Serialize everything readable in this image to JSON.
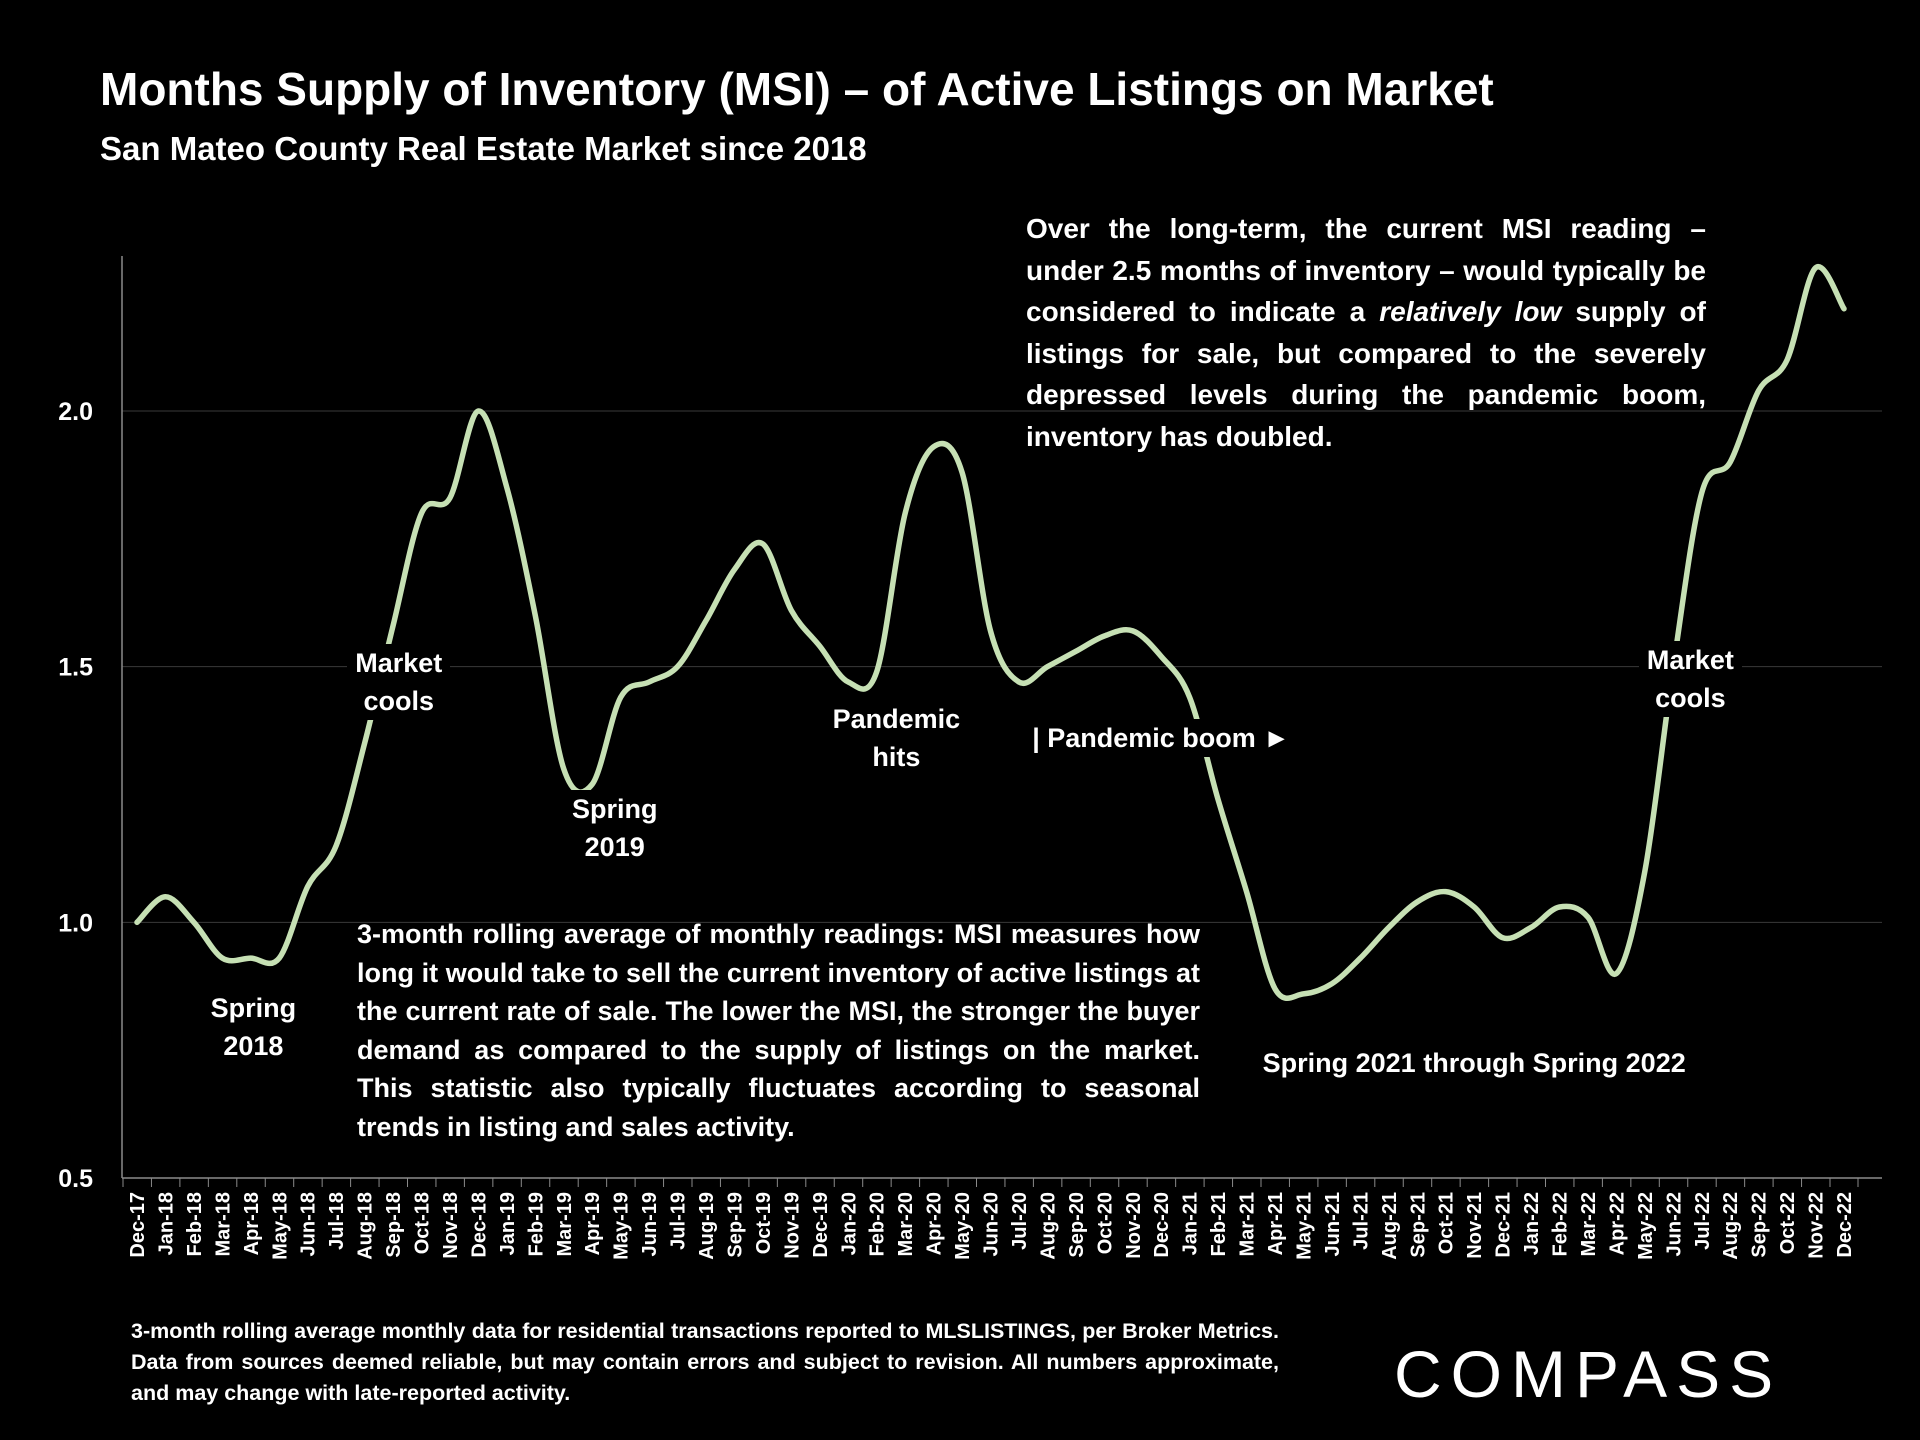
{
  "header": {
    "title": "Months Supply of Inventory (MSI) – of Active Listings on Market",
    "subtitle": "San Mateo County Real Estate Market since 2018"
  },
  "notes": {
    "top_before": "Over the long-term, the current MSI reading – under 2.5 months of inventory – would typically be considered to indicate a ",
    "top_emph": "relatively low",
    "top_after": " supply of listings for sale, but compared to the severely depressed levels during the pandemic boom, inventory has doubled.",
    "middle": "3-month rolling average of monthly readings: MSI measures how long it would take to sell the current inventory of active listings at the current rate of sale. The lower the MSI, the stronger the buyer demand as compared to the supply of listings on the market. This statistic also typically fluctuates according to seasonal trends in listing and sales activity.",
    "footnote": "3-month rolling average monthly data for residential transactions reported to MLSLISTINGS, per Broker Metrics. Data from sources deemed reliable, but may contain errors and subject to revision. All numbers approximate, and may change with late-reported activity."
  },
  "brand": {
    "logo_text": "COMPASS"
  },
  "colors": {
    "background": "#000000",
    "line": "#c6e0b4",
    "text": "#ffffff",
    "gridline": "#3a3a3a"
  },
  "chart_data": {
    "type": "line",
    "title": "Months Supply of Inventory (MSI) – of Active Listings on Market",
    "xlabel": "",
    "ylabel": "",
    "ylim": [
      0.5,
      2.3
    ],
    "yticks": [
      0.5,
      1.0,
      1.5,
      2.0
    ],
    "ytick_labels": [
      "0.5",
      "1.0",
      "1.5",
      "2.0"
    ],
    "grid": true,
    "categories": [
      "Dec-17",
      "Jan-18",
      "Feb-18",
      "Mar-18",
      "Apr-18",
      "May-18",
      "Jun-18",
      "Jul-18",
      "Aug-18",
      "Sep-18",
      "Oct-18",
      "Nov-18",
      "Dec-18",
      "Jan-19",
      "Feb-19",
      "Mar-19",
      "Apr-19",
      "May-19",
      "Jun-19",
      "Jul-19",
      "Aug-19",
      "Sep-19",
      "Oct-19",
      "Nov-19",
      "Dec-19",
      "Jan-20",
      "Feb-20",
      "Mar-20",
      "Apr-20",
      "May-20",
      "Jun-20",
      "Jul-20",
      "Aug-20",
      "Sep-20",
      "Oct-20",
      "Nov-20",
      "Dec-20",
      "Jan-21",
      "Feb-21",
      "Mar-21",
      "Apr-21",
      "May-21",
      "Jun-21",
      "Jul-21",
      "Aug-21",
      "Sep-21",
      "Oct-21",
      "Nov-21",
      "Dec-21",
      "Jan-22",
      "Feb-22",
      "Mar-22",
      "Apr-22",
      "May-22",
      "Jun-22",
      "Jul-22",
      "Aug-22",
      "Sep-22",
      "Oct-22",
      "Nov-22",
      "Dec-22"
    ],
    "series": [
      {
        "name": "MSI (3-month rolling average)",
        "values": [
          1.0,
          1.05,
          1.0,
          0.93,
          0.93,
          0.93,
          1.07,
          1.15,
          1.35,
          1.58,
          1.8,
          1.83,
          2.0,
          1.85,
          1.6,
          1.3,
          1.27,
          1.44,
          1.47,
          1.5,
          1.59,
          1.69,
          1.74,
          1.61,
          1.54,
          1.47,
          1.49,
          1.8,
          1.93,
          1.88,
          1.57,
          1.47,
          1.5,
          1.53,
          1.56,
          1.57,
          1.52,
          1.44,
          1.24,
          1.06,
          0.87,
          0.86,
          0.88,
          0.93,
          0.99,
          1.04,
          1.06,
          1.03,
          0.97,
          0.99,
          1.03,
          1.01,
          0.9,
          1.1,
          1.5,
          1.84,
          1.9,
          2.04,
          2.1,
          2.28,
          2.2
        ]
      }
    ],
    "annotations": [
      {
        "text": "Spring\n2018",
        "x_index": 4.1,
        "y": 0.795
      },
      {
        "text": "Market\ncools",
        "x_index": 9.2,
        "y": 1.47
      },
      {
        "text": "Spring\n2019",
        "x_index": 16.8,
        "y": 1.185
      },
      {
        "text": "Pandemic\nhits",
        "x_index": 26.7,
        "y": 1.36
      },
      {
        "text": "| Pandemic boom ►",
        "x_index": 36.0,
        "y": 1.36
      },
      {
        "text": "Spring 2021 through Spring 2022",
        "x_index": 47.0,
        "y": 0.725
      },
      {
        "text": "Market\ncools",
        "x_index": 54.6,
        "y": 1.475
      }
    ]
  }
}
